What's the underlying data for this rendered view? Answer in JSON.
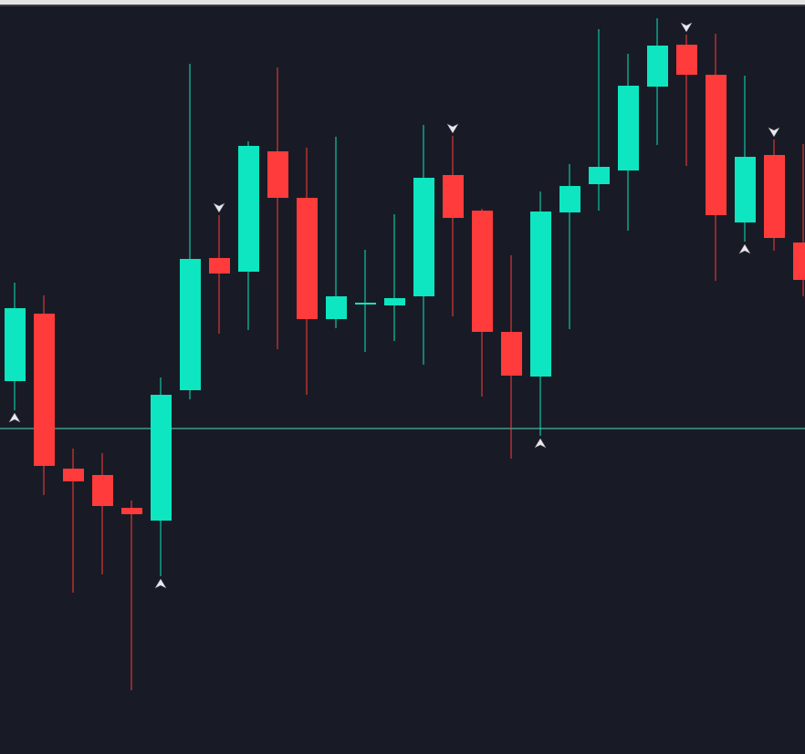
{
  "colors": {
    "background": "#181b25",
    "up": "#0de6c0",
    "down": "#ff3b3b",
    "level_line": "#4fd8c4",
    "arrow": "#e8e8f0"
  },
  "chart_data": {
    "type": "candlestick",
    "title": "",
    "xlabel": "",
    "ylabel": "",
    "ylim": [
      170,
      1000
    ],
    "grid": false,
    "horizontal_line": 530,
    "candles": [
      {
        "o": 582,
        "h": 690,
        "l": 550,
        "c": 662
      },
      {
        "o": 656,
        "h": 676,
        "l": 457,
        "c": 489
      },
      {
        "o": 486,
        "h": 508,
        "l": 350,
        "c": 472
      },
      {
        "o": 479,
        "h": 503,
        "l": 370,
        "c": 445
      },
      {
        "o": 443,
        "h": 451,
        "l": 243,
        "c": 436
      },
      {
        "o": 429,
        "h": 586,
        "l": 368,
        "c": 567
      },
      {
        "o": 572,
        "h": 930,
        "l": 562,
        "c": 716
      },
      {
        "o": 717,
        "h": 764,
        "l": 634,
        "c": 700
      },
      {
        "o": 702,
        "h": 845,
        "l": 638,
        "c": 840
      },
      {
        "o": 834,
        "h": 926,
        "l": 617,
        "c": 783
      },
      {
        "o": 783,
        "h": 838,
        "l": 567,
        "c": 650
      },
      {
        "o": 650,
        "h": 850,
        "l": 640,
        "c": 675
      },
      {
        "o": 666,
        "h": 726,
        "l": 614,
        "c": 668
      },
      {
        "o": 665,
        "h": 765,
        "l": 626,
        "c": 673
      },
      {
        "o": 675,
        "h": 863,
        "l": 600,
        "c": 805
      },
      {
        "o": 808,
        "h": 851,
        "l": 653,
        "c": 761
      },
      {
        "o": 769,
        "h": 771,
        "l": 565,
        "c": 636
      },
      {
        "o": 636,
        "h": 720,
        "l": 497,
        "c": 588
      },
      {
        "o": 587,
        "h": 790,
        "l": 522,
        "c": 768
      },
      {
        "o": 767,
        "h": 820,
        "l": 639,
        "c": 796
      },
      {
        "o": 798,
        "h": 968,
        "l": 769,
        "c": 817
      },
      {
        "o": 813,
        "h": 941,
        "l": 747,
        "c": 906
      },
      {
        "o": 905,
        "h": 980,
        "l": 841,
        "c": 950
      },
      {
        "o": 951,
        "h": 962,
        "l": 818,
        "c": 918
      },
      {
        "o": 918,
        "h": 963,
        "l": 692,
        "c": 764
      },
      {
        "o": 756,
        "h": 917,
        "l": 735,
        "c": 828
      },
      {
        "o": 830,
        "h": 847,
        "l": 725,
        "c": 739
      },
      {
        "o": 734,
        "h": 842,
        "l": 675,
        "c": 693
      }
    ],
    "signals": [
      {
        "index": 0,
        "type": "buy"
      },
      {
        "index": 5,
        "type": "buy"
      },
      {
        "index": 7,
        "type": "sell"
      },
      {
        "index": 15,
        "type": "sell"
      },
      {
        "index": 18,
        "type": "buy"
      },
      {
        "index": 23,
        "type": "sell"
      },
      {
        "index": 25,
        "type": "buy"
      },
      {
        "index": 26,
        "type": "sell"
      }
    ]
  }
}
